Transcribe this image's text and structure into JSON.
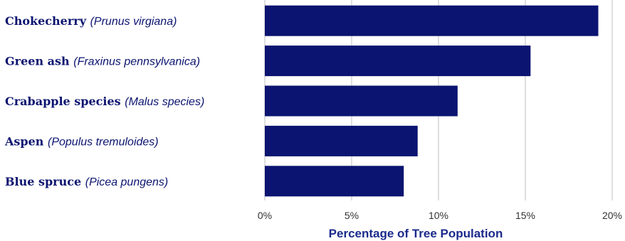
{
  "chart_data": {
    "type": "bar",
    "orientation": "horizontal",
    "categories": [
      {
        "common": "Chokecherry",
        "scientific": "(Prunus virgiana)"
      },
      {
        "common": "Green ash",
        "scientific": "(Fraxinus pennsylvanica)"
      },
      {
        "common": "Crabapple species",
        "scientific": "(Malus species)"
      },
      {
        "common": "Aspen",
        "scientific": "(Populus tremuloides)"
      },
      {
        "common": "Blue spruce",
        "scientific": "(Picea pungens)"
      }
    ],
    "values": [
      19.2,
      15.3,
      11.1,
      8.8,
      8.0
    ],
    "value_unit": "%",
    "xlabel": "Percentage of Tree Population",
    "ylabel": "",
    "title": "",
    "xlim": [
      0,
      20
    ],
    "ticks": [
      "0%",
      "5%",
      "10%",
      "15%",
      "20%"
    ],
    "grid": "vertical",
    "legend": "none",
    "colors": {
      "bar": "#0b1470",
      "grid": "#bfbfbf",
      "label": "#0b1470",
      "axis_title": "#1a2b8c"
    }
  }
}
